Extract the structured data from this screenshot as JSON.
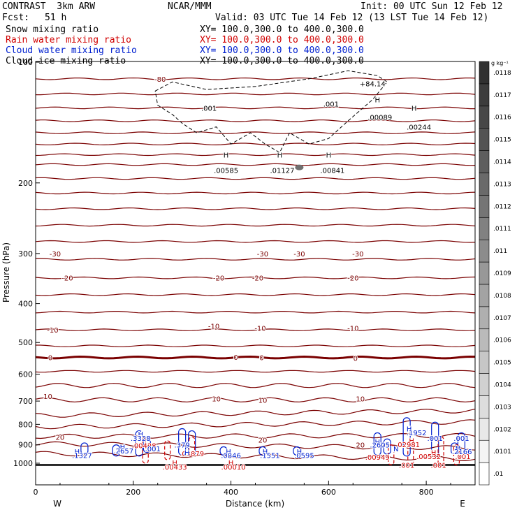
{
  "header": {
    "model": "CONTRAST  3km ARW",
    "source": "NCAR/MMM",
    "init": "Init: 00 UTC Sun 12 Feb 12",
    "fcst_label": "Fcst:",
    "fcst_value": "51 h",
    "valid": "Valid: 03 UTC Tue 14 Feb 12 (13 LST Tue 14 Feb 12)"
  },
  "fields": [
    {
      "name": "Snow mixing ratio",
      "xy": "XY= 100.0,300.0 to 400.0,300.0",
      "color": "#000000"
    },
    {
      "name": "Rain water mixing ratio",
      "xy": "XY= 100.0,300.0 to 400.0,300.0",
      "color": "#d00000"
    },
    {
      "name": "Cloud water mixing ratio",
      "xy": "XY= 100.0,300.0 to 400.0,300.0",
      "color": "#0020d0"
    },
    {
      "name": "Cloud ice mixing ratio",
      "xy": "XY= 100.0,300.0 to 400.0,300.0",
      "color": "#000000"
    }
  ],
  "chart_data": {
    "type": "cross-section contour",
    "xlabel": "Distance (km)",
    "ylabel": "Pressure (hPa)",
    "xlim": [
      0,
      900
    ],
    "ylim": [
      1050,
      100
    ],
    "y_scale": "log",
    "xticks": [
      "0",
      "200",
      "400",
      "600",
      "800"
    ],
    "xtick_values": [
      0,
      200,
      400,
      600,
      800
    ],
    "yticks": [
      "100",
      "200",
      "300",
      "400",
      "500",
      "600",
      "700",
      "800",
      "900",
      "1000"
    ],
    "ytick_values": [
      100,
      200,
      300,
      400,
      500,
      600,
      700,
      800,
      900,
      1000
    ],
    "west_label": "W",
    "east_label": "E",
    "colorbar": {
      "unit": "g kg⁻¹",
      "levels": [
        ".01",
        ".0101",
        ".0102",
        ".0103",
        ".0104",
        ".0105",
        ".0106",
        ".0107",
        ".0108",
        ".0109",
        ".011",
        ".0111",
        ".0112",
        ".0113",
        ".0114",
        ".0115",
        ".0116",
        ".0117",
        ".0118"
      ],
      "color_low": "#ffffff",
      "color_high": "#303030"
    },
    "temperature_contours": {
      "color": "#7a0000",
      "pressures": [
        110,
        120,
        130,
        140,
        150,
        160,
        170,
        180,
        195,
        212,
        232,
        255,
        280,
        310,
        345,
        380,
        420,
        465,
        510,
        545,
        590,
        640,
        695,
        750,
        800,
        855,
        905,
        960
      ],
      "labels": [
        {
          "text": "-80",
          "x": 255,
          "p": 110
        },
        {
          "text": "-30",
          "x": 40,
          "p": 300
        },
        {
          "text": "-30",
          "x": 465,
          "p": 300
        },
        {
          "text": "-30",
          "x": 540,
          "p": 300
        },
        {
          "text": "-30",
          "x": 660,
          "p": 300
        },
        {
          "text": "-20",
          "x": 65,
          "p": 345
        },
        {
          "text": "-20",
          "x": 375,
          "p": 345
        },
        {
          "text": "-20",
          "x": 455,
          "p": 345
        },
        {
          "text": "-20",
          "x": 650,
          "p": 345
        },
        {
          "text": "-10",
          "x": 35,
          "p": 465
        },
        {
          "text": "-10",
          "x": 365,
          "p": 455
        },
        {
          "text": "-10",
          "x": 460,
          "p": 460
        },
        {
          "text": "-10",
          "x": 650,
          "p": 460
        },
        {
          "text": "0",
          "x": 30,
          "p": 545
        },
        {
          "text": "0",
          "x": 410,
          "p": 543
        },
        {
          "text": "0",
          "x": 463,
          "p": 545
        },
        {
          "text": "0",
          "x": 655,
          "p": 547
        },
        {
          "text": "10",
          "x": 25,
          "p": 680
        },
        {
          "text": "10",
          "x": 370,
          "p": 690
        },
        {
          "text": "10",
          "x": 465,
          "p": 695
        },
        {
          "text": "10",
          "x": 665,
          "p": 690
        },
        {
          "text": "20",
          "x": 50,
          "p": 860
        },
        {
          "text": "20",
          "x": 465,
          "p": 875
        },
        {
          "text": "20",
          "x": 665,
          "p": 900
        }
      ]
    },
    "zero_isotherm_pressure": 545,
    "surface_pressure": 1010,
    "snow": {
      "contour": ".001",
      "labels": [
        {
          "text": ".001",
          "x": 355,
          "p": 130
        },
        {
          "text": ".001",
          "x": 605,
          "p": 127
        },
        {
          "text": "H",
          "x": 390,
          "p": 170
        },
        {
          "text": ".00585",
          "x": 390,
          "p": 186
        },
        {
          "text": "H",
          "x": 500,
          "p": 170
        },
        {
          "text": ".01127",
          "x": 505,
          "p": 186
        },
        {
          "text": "H",
          "x": 600,
          "p": 170
        },
        {
          "text": ".00841",
          "x": 608,
          "p": 186
        },
        {
          "text": "H",
          "x": 700,
          "p": 124
        },
        {
          "text": ".00089",
          "x": 705,
          "p": 137
        },
        {
          "text": "H",
          "x": 775,
          "p": 130
        },
        {
          "text": ".00244",
          "x": 785,
          "p": 145
        }
      ]
    },
    "rain": {
      "labels": [
        {
          "text": "H",
          "x": 222,
          "p": 878
        },
        {
          "text": ".00428",
          "x": 222,
          "p": 902
        },
        {
          "text": ".03879",
          "x": 320,
          "p": 945
        },
        {
          "text": "H",
          "x": 285,
          "p": 995
        },
        {
          "text": ".00433",
          "x": 285,
          "p": 1020
        },
        {
          "text": "H",
          "x": 400,
          "p": 995
        },
        {
          "text": ".00010",
          "x": 405,
          "p": 1020
        },
        {
          "text": "H",
          "x": 770,
          "p": 878
        },
        {
          "text": ".02981",
          "x": 762,
          "p": 898
        },
        {
          "text": ".00949",
          "x": 700,
          "p": 965
        },
        {
          "text": "H",
          "x": 815,
          "p": 940
        },
        {
          "text": ".00532",
          "x": 805,
          "p": 960
        },
        {
          "text": ".001",
          "x": 760,
          "p": 1010
        },
        {
          "text": ".001",
          "x": 825,
          "p": 1010
        },
        {
          "text": ".001",
          "x": 875,
          "p": 960
        }
      ]
    },
    "cloud_water": {
      "labels": [
        {
          "text": "H",
          "x": 215,
          "p": 845
        },
        {
          "text": ".3328",
          "x": 215,
          "p": 866
        },
        {
          "text": "H",
          "x": 178,
          "p": 910
        },
        {
          "text": ".2657",
          "x": 180,
          "p": 930
        },
        {
          "text": "H",
          "x": 85,
          "p": 935
        },
        {
          "text": ".1327",
          "x": 95,
          "p": 955
        },
        {
          "text": ".001",
          "x": 240,
          "p": 920
        },
        {
          "text": ".379",
          "x": 300,
          "p": 900
        },
        {
          "text": "H",
          "x": 310,
          "p": 940
        },
        {
          "text": "H",
          "x": 395,
          "p": 935
        },
        {
          "text": ".0846",
          "x": 400,
          "p": 955
        },
        {
          "text": "H",
          "x": 470,
          "p": 935
        },
        {
          "text": ".1551",
          "x": 480,
          "p": 955
        },
        {
          "text": "H",
          "x": 540,
          "p": 935
        },
        {
          "text": ".0595",
          "x": 550,
          "p": 955
        },
        {
          "text": "H",
          "x": 765,
          "p": 820
        },
        {
          "text": ".1952",
          "x": 780,
          "p": 838
        },
        {
          "text": "H",
          "x": 700,
          "p": 883
        },
        {
          "text": ".2605",
          "x": 705,
          "p": 900
        },
        {
          "text": "N",
          "x": 738,
          "p": 920
        },
        {
          "text": ".001",
          "x": 818,
          "p": 865
        },
        {
          "text": ".001",
          "x": 872,
          "p": 865
        },
        {
          "text": "H",
          "x": 865,
          "p": 915
        },
        {
          "text": ".2166",
          "x": 873,
          "p": 935
        }
      ]
    },
    "cloud_ice": {
      "labels": [
        {
          "text": "+84.14",
          "x": 690,
          "p": 113
        }
      ]
    }
  }
}
